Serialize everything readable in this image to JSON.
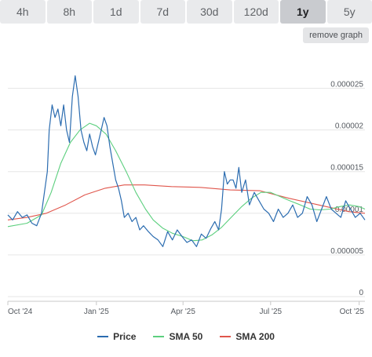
{
  "timeframes": {
    "tabs": [
      "4h",
      "8h",
      "1d",
      "7d",
      "30d",
      "120d",
      "1y",
      "5y"
    ],
    "active": "1y"
  },
  "controls": {
    "remove_graph_label": "remove graph"
  },
  "colors": {
    "price": "#2b6cb0",
    "sma50": "#5ccf7e",
    "sma200": "#e0564c",
    "grid": "#e6e6e6"
  },
  "chart_data": {
    "type": "line",
    "x_ticks": [
      "Oct '24",
      "Jan '25",
      "Apr '25",
      "Jul '25",
      "Oct '25"
    ],
    "y_ticks": [
      "0",
      "0.000005",
      "0.00001",
      "0.000015",
      "0.00002",
      "0.000025"
    ],
    "ylim": [
      0,
      2.9e-05
    ],
    "grid": true,
    "legend": "bottom-center",
    "series": [
      {
        "name": "Price",
        "x": [
          "2024-10-01",
          "2024-10-06",
          "2024-10-11",
          "2024-10-16",
          "2024-10-21",
          "2024-10-26",
          "2024-10-31",
          "2024-11-05",
          "2024-11-08",
          "2024-11-11",
          "2024-11-13",
          "2024-11-16",
          "2024-11-19",
          "2024-11-22",
          "2024-11-25",
          "2024-11-28",
          "2024-12-01",
          "2024-12-04",
          "2024-12-07",
          "2024-12-10",
          "2024-12-13",
          "2024-12-16",
          "2024-12-19",
          "2024-12-22",
          "2024-12-25",
          "2024-12-28",
          "2024-12-31",
          "2025-01-03",
          "2025-01-06",
          "2025-01-09",
          "2025-01-12",
          "2025-01-15",
          "2025-01-18",
          "2025-01-21",
          "2025-01-24",
          "2025-01-27",
          "2025-01-30",
          "2025-02-03",
          "2025-02-07",
          "2025-02-11",
          "2025-02-15",
          "2025-02-19",
          "2025-02-24",
          "2025-03-01",
          "2025-03-06",
          "2025-03-11",
          "2025-03-16",
          "2025-03-21",
          "2025-03-26",
          "2025-03-31",
          "2025-04-05",
          "2025-04-10",
          "2025-04-15",
          "2025-04-20",
          "2025-04-25",
          "2025-04-30",
          "2025-05-04",
          "2025-05-08",
          "2025-05-11",
          "2025-05-14",
          "2025-05-17",
          "2025-05-20",
          "2025-05-23",
          "2025-05-26",
          "2025-05-29",
          "2025-06-01",
          "2025-06-05",
          "2025-06-09",
          "2025-06-14",
          "2025-06-19",
          "2025-06-24",
          "2025-06-29",
          "2025-07-04",
          "2025-07-09",
          "2025-07-14",
          "2025-07-19",
          "2025-07-24",
          "2025-07-29",
          "2025-08-03",
          "2025-08-08",
          "2025-08-13",
          "2025-08-18",
          "2025-08-23",
          "2025-08-28",
          "2025-09-02",
          "2025-09-07",
          "2025-09-12",
          "2025-09-17",
          "2025-09-22",
          "2025-09-27",
          "2025-10-02",
          "2025-10-07"
        ],
        "y": [
          9.8e-06,
          9.2e-06,
          1.02e-05,
          9.5e-06,
          9.8e-06,
          8.8e-06,
          8.5e-06,
          1e-05,
          1.25e-05,
          1.5e-05,
          2e-05,
          2.3e-05,
          2.15e-05,
          2.25e-05,
          2.05e-05,
          2.3e-05,
          2e-05,
          1.85e-05,
          2.4e-05,
          2.65e-05,
          2.4e-05,
          2e-05,
          1.85e-05,
          1.75e-05,
          1.95e-05,
          1.8e-05,
          1.7e-05,
          1.85e-05,
          2e-05,
          2.15e-05,
          2.05e-05,
          1.8e-05,
          1.6e-05,
          1.4e-05,
          1.3e-05,
          1.15e-05,
          9.5e-06,
          1e-05,
          9e-06,
          9.5e-06,
          8e-06,
          8.5e-06,
          7.8e-06,
          7.2e-06,
          6.8e-06,
          6e-06,
          7.8e-06,
          6.8e-06,
          8e-06,
          7.2e-06,
          6.5e-06,
          6.8e-06,
          6e-06,
          7.5e-06,
          7e-06,
          8.2e-06,
          9e-06,
          8e-06,
          1.05e-05,
          1.5e-05,
          1.35e-05,
          1.4e-05,
          1.4e-05,
          1.3e-05,
          1.55e-05,
          1.25e-05,
          1.4e-05,
          1.1e-05,
          1.25e-05,
          1.15e-05,
          1.05e-05,
          1e-05,
          9e-06,
          1.05e-05,
          9.5e-06,
          1e-05,
          1.1e-05,
          9.5e-06,
          1e-05,
          1.2e-05,
          1.1e-05,
          9e-06,
          1.05e-05,
          1.2e-05,
          1.05e-05,
          1e-05,
          9.5e-06,
          1.15e-05,
          1.05e-05,
          9.5e-06,
          1e-05,
          9.2e-06
        ]
      },
      {
        "name": "SMA 50",
        "x": [
          "2024-10-01",
          "2024-10-21",
          "2024-11-05",
          "2024-11-15",
          "2024-11-25",
          "2024-12-05",
          "2024-12-15",
          "2024-12-25",
          "2025-01-01",
          "2025-01-11",
          "2025-01-21",
          "2025-02-01",
          "2025-02-11",
          "2025-02-21",
          "2025-03-01",
          "2025-03-11",
          "2025-03-21",
          "2025-04-01",
          "2025-04-11",
          "2025-04-21",
          "2025-05-01",
          "2025-05-11",
          "2025-05-21",
          "2025-06-01",
          "2025-06-11",
          "2025-06-21",
          "2025-07-01",
          "2025-07-11",
          "2025-07-21",
          "2025-08-01",
          "2025-08-11",
          "2025-08-21",
          "2025-09-01",
          "2025-09-11",
          "2025-09-21",
          "2025-10-01",
          "2025-10-07"
        ],
        "y": [
          8.4e-06,
          8.8e-06,
          9.8e-06,
          1.25e-05,
          1.6e-05,
          1.85e-05,
          2e-05,
          2.08e-05,
          2.05e-05,
          1.95e-05,
          1.75e-05,
          1.5e-05,
          1.25e-05,
          1.05e-05,
          9.2e-06,
          8.2e-06,
          7.6e-06,
          7.2e-06,
          6.7e-06,
          6.8e-06,
          7.4e-06,
          8.3e-06,
          9.5e-06,
          1.08e-05,
          1.18e-05,
          1.25e-05,
          1.25e-05,
          1.2e-05,
          1.15e-05,
          1.1e-05,
          1.05e-05,
          1.04e-05,
          1.05e-05,
          1.08e-05,
          1.1e-05,
          1.08e-05,
          1.05e-05
        ]
      },
      {
        "name": "SMA 200",
        "x": [
          "2024-10-01",
          "2024-10-21",
          "2024-11-10",
          "2024-11-30",
          "2024-12-20",
          "2025-01-10",
          "2025-01-30",
          "2025-02-20",
          "2025-03-20",
          "2025-04-20",
          "2025-05-20",
          "2025-06-20",
          "2025-07-20",
          "2025-08-20",
          "2025-09-20",
          "2025-10-07"
        ],
        "y": [
          9.2e-06,
          9.5e-06,
          1e-05,
          1.1e-05,
          1.22e-05,
          1.3e-05,
          1.34e-05,
          1.34e-05,
          1.32e-05,
          1.31e-05,
          1.28e-05,
          1.27e-05,
          1.18e-05,
          1.1e-05,
          1.02e-05,
          1e-05
        ]
      }
    ]
  }
}
